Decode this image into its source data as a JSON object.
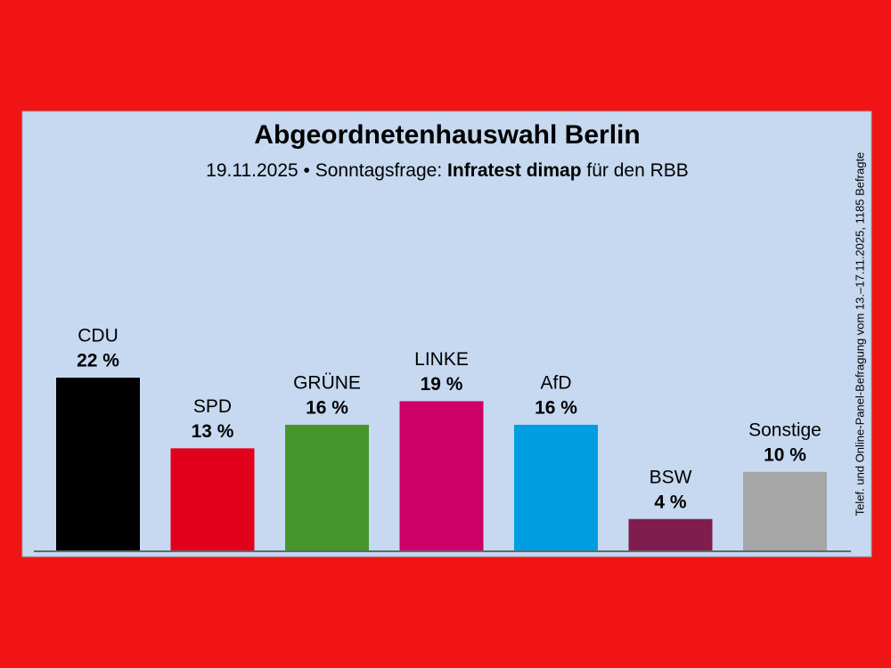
{
  "chart_data": {
    "type": "bar",
    "title": "Abgeordnetenhauswahl Berlin",
    "subtitle": [
      "19.11.2025 • Sonntagsfrage:",
      "Infratest dimap",
      "für den RBB"
    ],
    "source": "Telef. und Online-Panel-Befragung vom 13.–17.11.2025, 1185 Befragte",
    "categories": [
      "CDU",
      "SPD",
      "GRÜNE",
      "LINKE",
      "AfD",
      "BSW",
      "Sonstige"
    ],
    "values": [
      22,
      13,
      16,
      19,
      16,
      4,
      10
    ],
    "value_labels": [
      "22 %",
      "13 %",
      "16 %",
      "19 %",
      "16 %",
      "4 %",
      "10 %"
    ],
    "colors": [
      "#000000",
      "#e3001b",
      "#46962b",
      "#cc0066",
      "#009ee0",
      "#7f1d4e",
      "#a6a6a6"
    ]
  }
}
